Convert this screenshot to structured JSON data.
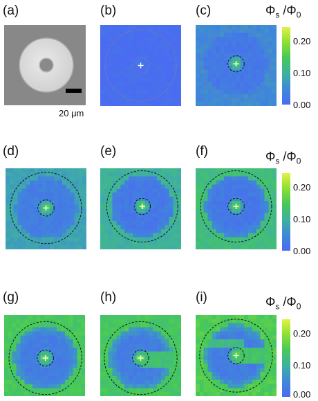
{
  "panels": [
    {
      "label": "(a)",
      "type": "sem"
    },
    {
      "label": "(b)",
      "type": "map",
      "core": 0.02,
      "ring": 0.0,
      "outer": 0.0,
      "mid": 0.0,
      "center": [
        0.5,
        0.5
      ],
      "outerR": 0.44,
      "innerR": 0.1
    },
    {
      "label": "(c)",
      "type": "map",
      "core": 0.16,
      "ring": 0.02,
      "outer": 0.05,
      "mid": 0.03,
      "center": [
        0.5,
        0.48
      ],
      "outerR": 0.44,
      "innerR": 0.1
    },
    {
      "label": "(d)",
      "type": "map",
      "core": 0.19,
      "ring": 0.03,
      "outer": 0.08,
      "mid": 0.05,
      "center": [
        0.5,
        0.49
      ],
      "outerR": 0.44,
      "innerR": 0.1
    },
    {
      "label": "(e)",
      "type": "map",
      "core": 0.19,
      "ring": 0.02,
      "outer": 0.1,
      "mid": 0.06,
      "center": [
        0.52,
        0.47
      ],
      "outerR": 0.44,
      "innerR": 0.1
    },
    {
      "label": "(f)",
      "type": "map",
      "core": 0.2,
      "ring": 0.02,
      "outer": 0.12,
      "mid": 0.08,
      "center": [
        0.5,
        0.47
      ],
      "outerR": 0.44,
      "innerR": 0.1
    },
    {
      "label": "(g)",
      "type": "map",
      "core": 0.2,
      "ring": 0.03,
      "outer": 0.14,
      "mid": 0.1,
      "center": [
        0.51,
        0.53
      ],
      "outerR": 0.45,
      "innerR": 0.1
    },
    {
      "label": "(h)",
      "type": "map",
      "core": 0.22,
      "ring": 0.03,
      "outer": 0.14,
      "mid": 0.12,
      "center": [
        0.5,
        0.53
      ],
      "outerR": 0.45,
      "innerR": 0.1
    },
    {
      "label": "(i)",
      "type": "map",
      "core": 0.2,
      "ring": 0.03,
      "outer": 0.15,
      "mid": 0.12,
      "center": [
        0.5,
        0.5
      ],
      "outerR": 0.45,
      "innerR": 0.1
    }
  ],
  "scale_bar": {
    "label": "20 μm"
  },
  "colorbar": {
    "title_main": "Φ",
    "title_sub_s": "s",
    "title_div": "/Φ",
    "title_sub_0": "0",
    "ticks": [
      "0.20",
      "0.10",
      "0.00"
    ],
    "range": [
      0,
      0.24
    ],
    "colors": [
      "#4a6cf0",
      "#3f88d8",
      "#3fb0a0",
      "#46c85a",
      "#8ae032",
      "#e4f046"
    ]
  }
}
